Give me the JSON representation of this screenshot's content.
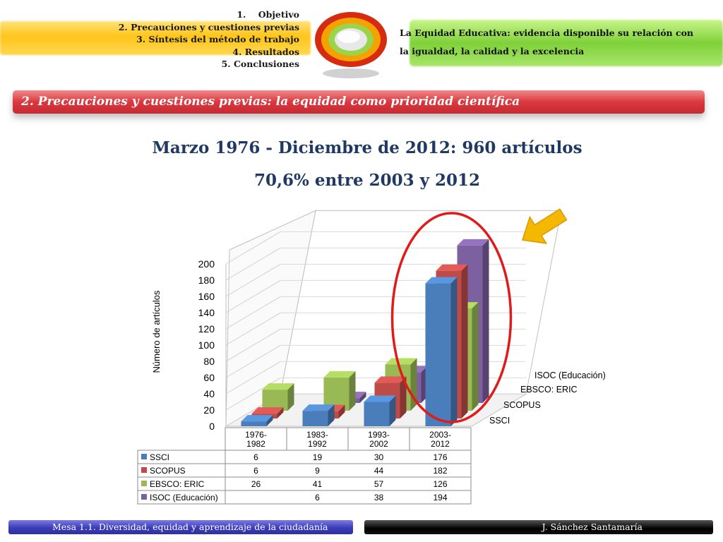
{
  "menu": {
    "items": [
      "1.    Objetivo",
      "2. Precauciones y cuestiones previas",
      "3. Síntesis del método de trabajo",
      "4. Resultados",
      "5. Conclusiones"
    ]
  },
  "topic": {
    "text": "La Equidad Educativa: evidencia disponible su relación con la igualdad, la calidad y la excelencia"
  },
  "section": {
    "title": "2. Precauciones y cuestiones previas: la equidad como prioridad científica"
  },
  "headline": {
    "line1": "Marzo 1976 - Diciembre de 2012: 960 artículos",
    "line2": "70,6% entre 2003 y 2012"
  },
  "footer": {
    "left": "Mesa 1.1. Diversidad, equidad y aprendizaje de la ciudadanía",
    "right": "J. Sánchez Santamaría"
  },
  "colors": {
    "orange_band": "#ffc51a",
    "green_band": "#7fd13a",
    "section_bar": "#d9383f",
    "headline": "#1f3864",
    "footer_left": "#3c3cb8",
    "footer_right": "#000000",
    "highlight_ellipse": "#e01b1b",
    "arrow": "#f5b800"
  },
  "chart_data": {
    "type": "bar",
    "3d": true,
    "categories": [
      "1976-\n1982",
      "1983-\n1992",
      "1993-\n2002",
      "2003-\n2012"
    ],
    "series": [
      {
        "name": "SSCI",
        "values": [
          6,
          19,
          30,
          176
        ],
        "color": "#4a7ebb"
      },
      {
        "name": "SCOPUS",
        "values": [
          6,
          9,
          44,
          182
        ],
        "color": "#be4b48"
      },
      {
        "name": "EBSCO: ERIC",
        "values": [
          26,
          41,
          57,
          126
        ],
        "color": "#98b954"
      },
      {
        "name": "ISOC (Educación)",
        "values": [
          null,
          6,
          38,
          194
        ],
        "color": "#7d60a0"
      }
    ],
    "ylabel": "Número de artículos",
    "yticks": [
      "0",
      "20",
      "40",
      "60",
      "80",
      "100",
      "120",
      "140",
      "160",
      "180",
      "200"
    ],
    "ylim": [
      0,
      200
    ],
    "data_table": true,
    "annotations": [
      "ellipse around 2003-2012 bars",
      "arrow pointing to ISOC 2003-2012 bar"
    ]
  }
}
